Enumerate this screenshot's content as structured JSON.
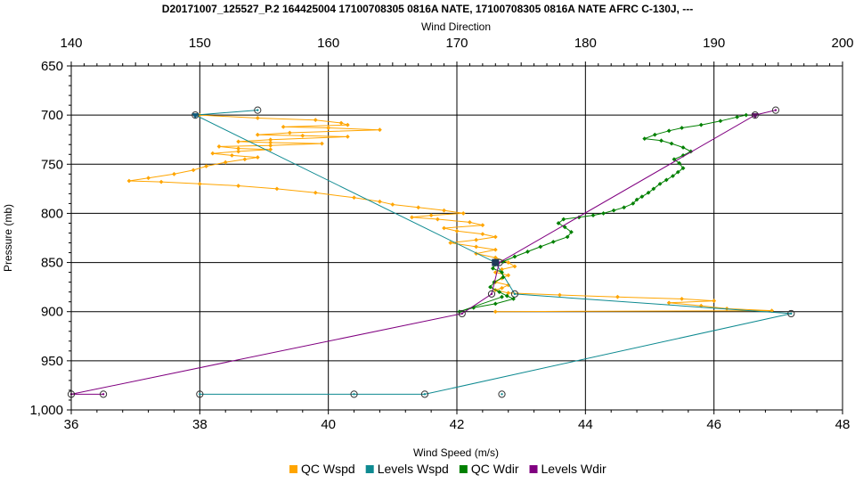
{
  "chart_data": {
    "type": "line",
    "title": "D20171007_125527_P.2 164425004 17100708305 0816A NATE, 17100708305 0816A NATE AFRC C-130J, ---",
    "xlabel": "Wind Speed (m/s)",
    "x2label": "Wind Direction",
    "ylabel": "Pressure (mb)",
    "xlim": [
      36,
      48
    ],
    "x2lim": [
      140,
      200
    ],
    "ylim": [
      650,
      1000
    ],
    "y_inverted": true,
    "grid": true,
    "legend_position": "bottom",
    "xticks": [
      "36",
      "38",
      "40",
      "42",
      "44",
      "46",
      "48"
    ],
    "x2ticks": [
      "140",
      "150",
      "160",
      "170",
      "180",
      "190",
      "200"
    ],
    "yticks": [
      "650",
      "700",
      "750",
      "800",
      "850",
      "900",
      "950",
      "1,000"
    ],
    "series": [
      {
        "name": "QC Wspd",
        "axis": "bottom",
        "color": "#FFA500",
        "marker": "diamond",
        "points": [
          [
            38.0,
            700
          ],
          [
            38.9,
            703
          ],
          [
            39.8,
            705
          ],
          [
            40.2,
            708
          ],
          [
            40.3,
            710
          ],
          [
            39.3,
            712
          ],
          [
            40.0,
            713
          ],
          [
            40.8,
            715
          ],
          [
            39.4,
            718
          ],
          [
            38.9,
            720
          ],
          [
            39.6,
            721
          ],
          [
            40.3,
            722
          ],
          [
            39.1,
            725
          ],
          [
            38.6,
            727
          ],
          [
            39.1,
            728
          ],
          [
            39.9,
            729
          ],
          [
            39.1,
            731
          ],
          [
            38.3,
            732
          ],
          [
            38.6,
            734
          ],
          [
            39.1,
            735
          ],
          [
            38.6,
            737
          ],
          [
            38.2,
            739
          ],
          [
            38.5,
            741
          ],
          [
            38.9,
            743
          ],
          [
            38.7,
            745
          ],
          [
            38.4,
            748
          ],
          [
            38.1,
            752
          ],
          [
            37.9,
            756
          ],
          [
            37.6,
            760
          ],
          [
            37.2,
            764
          ],
          [
            36.9,
            767
          ],
          [
            37.4,
            768
          ],
          [
            38.0,
            770
          ],
          [
            38.6,
            772
          ],
          [
            39.2,
            775
          ],
          [
            39.8,
            779
          ],
          [
            40.4,
            784
          ],
          [
            40.8,
            788
          ],
          [
            41.0,
            791
          ],
          [
            41.4,
            794
          ],
          [
            41.8,
            797
          ],
          [
            42.1,
            800
          ],
          [
            41.6,
            802
          ],
          [
            41.3,
            804
          ],
          [
            41.7,
            806
          ],
          [
            42.2,
            809
          ],
          [
            42.4,
            812
          ],
          [
            41.8,
            815
          ],
          [
            42.0,
            818
          ],
          [
            42.4,
            821
          ],
          [
            42.6,
            824
          ],
          [
            42.3,
            827
          ],
          [
            41.9,
            830
          ],
          [
            42.3,
            834
          ],
          [
            42.6,
            837
          ],
          [
            42.3,
            841
          ],
          [
            42.6,
            845
          ],
          [
            42.8,
            850
          ],
          [
            42.9,
            854
          ],
          [
            42.7,
            857
          ],
          [
            42.6,
            860
          ],
          [
            42.8,
            863
          ],
          [
            42.7,
            866
          ],
          [
            42.6,
            870
          ],
          [
            42.8,
            873
          ],
          [
            42.7,
            876
          ],
          [
            42.6,
            878
          ],
          [
            42.8,
            881
          ],
          [
            43.6,
            883
          ],
          [
            44.5,
            885
          ],
          [
            45.5,
            887
          ],
          [
            46.0,
            889
          ],
          [
            45.3,
            891
          ],
          [
            45.8,
            894
          ],
          [
            46.2,
            897
          ],
          [
            46.9,
            899
          ],
          [
            42.6,
            900
          ]
        ]
      },
      {
        "name": "Levels Wspd",
        "axis": "bottom",
        "color": "#0E8A91",
        "marker": "circle",
        "points": [
          [
            38.9,
            695
          ],
          [
            37.93,
            700
          ],
          [
            42.6,
            850
          ],
          [
            42.9,
            882
          ],
          [
            47.2,
            902
          ],
          [
            41.5,
            984
          ],
          [
            40.4,
            984
          ],
          [
            38.0,
            984
          ]
        ],
        "extra_markers": [
          [
            42.7,
            984
          ]
        ]
      },
      {
        "name": "QC Wdir",
        "axis": "top",
        "color": "#008000",
        "marker": "diamond",
        "points": [
          [
            192.5,
            700
          ],
          [
            191.8,
            702
          ],
          [
            190.5,
            706
          ],
          [
            189.0,
            710
          ],
          [
            187.5,
            713
          ],
          [
            186.5,
            716
          ],
          [
            185.4,
            720
          ],
          [
            184.6,
            724
          ],
          [
            185.9,
            726
          ],
          [
            186.7,
            729
          ],
          [
            187.6,
            733
          ],
          [
            188.2,
            737
          ],
          [
            187.6,
            741
          ],
          [
            186.9,
            745
          ],
          [
            187.3,
            749
          ],
          [
            187.6,
            754
          ],
          [
            187.2,
            758
          ],
          [
            186.8,
            762
          ],
          [
            186.3,
            766
          ],
          [
            185.8,
            770
          ],
          [
            185.3,
            775
          ],
          [
            184.9,
            779
          ],
          [
            184.4,
            783
          ],
          [
            184.0,
            786
          ],
          [
            183.7,
            790
          ],
          [
            183.0,
            794
          ],
          [
            182.2,
            797
          ],
          [
            181.4,
            800
          ],
          [
            180.6,
            802
          ],
          [
            179.5,
            804
          ],
          [
            178.3,
            806
          ],
          [
            177.9,
            810
          ],
          [
            178.4,
            814
          ],
          [
            178.9,
            819
          ],
          [
            178.6,
            824
          ],
          [
            177.5,
            829
          ],
          [
            176.5,
            834
          ],
          [
            175.5,
            839
          ],
          [
            174.5,
            844
          ],
          [
            173.6,
            849
          ],
          [
            173.0,
            852
          ],
          [
            172.8,
            856
          ],
          [
            173.5,
            860
          ],
          [
            173.6,
            865
          ],
          [
            172.9,
            870
          ],
          [
            172.6,
            875
          ],
          [
            173.3,
            880
          ],
          [
            173.9,
            884
          ],
          [
            174.4,
            887
          ],
          [
            173.0,
            892
          ],
          [
            171.3,
            896
          ],
          [
            170.2,
            900
          ],
          [
            173.5,
            885
          ]
        ]
      },
      {
        "name": "Levels Wdir",
        "axis": "top",
        "color": "#800080",
        "marker": "circle",
        "points": [
          [
            194.8,
            695
          ],
          [
            193.2,
            700
          ],
          [
            173.3,
            850
          ],
          [
            172.7,
            882
          ],
          [
            170.4,
            902
          ],
          [
            140.0,
            984
          ],
          [
            142.5,
            984
          ]
        ]
      }
    ]
  }
}
